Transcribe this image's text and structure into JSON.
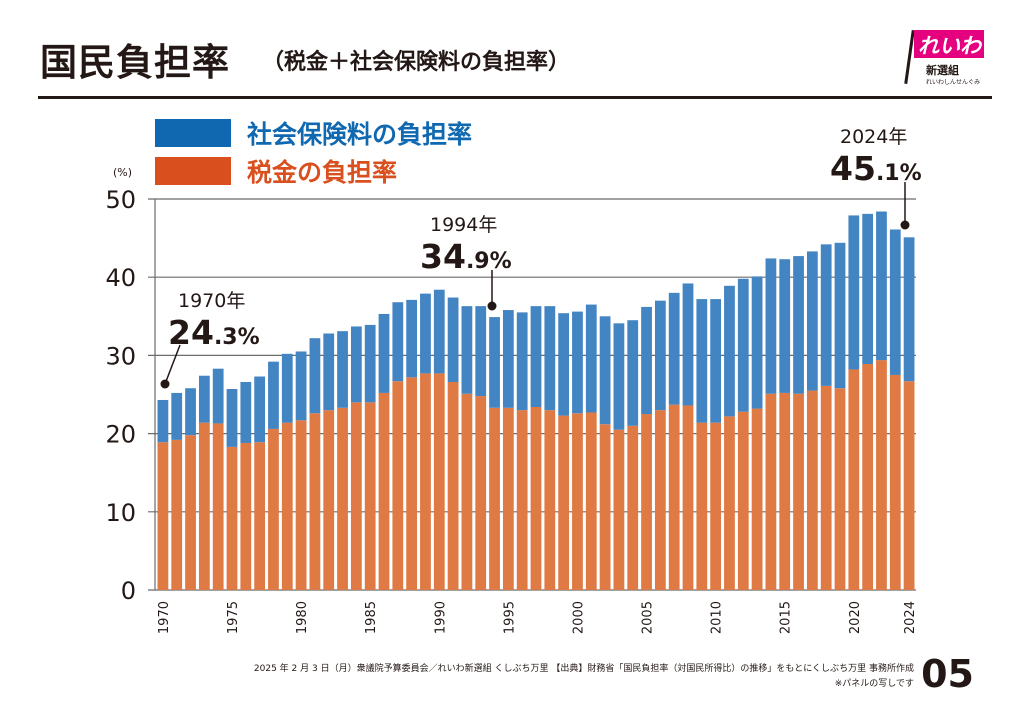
{
  "header": {
    "title": "国民負担率",
    "subtitle": "（税金＋社会保険料の負担率）"
  },
  "logo": {
    "name": "れいわ",
    "sub": "新選組",
    "sub2": "れいわしんせんぐみ"
  },
  "colors": {
    "social_insurance": "#4384c2",
    "tax": "#e07a44",
    "legend_social_insurance": "#0f68b0",
    "legend_tax": "#d9501e",
    "text": "#231815"
  },
  "footer": {
    "source": "2025 年 2 月 3 日（月）衆議院予算委員会／れいわ新選組 くしぶち万里 【出典】財務省「国民負担率（対国民所得比）の推移」をもとにくしぶち万里 事務所作成",
    "note": "※パネルの写しです",
    "page": "05"
  },
  "chart_data": {
    "type": "bar",
    "stacked": true,
    "title": "国民負担率（税金＋社会保険料の負担率）",
    "xlabel": "",
    "ylabel": "(%)",
    "ylim": [
      0,
      50
    ],
    "yticks": [
      0,
      10,
      20,
      30,
      40,
      50
    ],
    "grid": true,
    "legend_position": "top-left",
    "categories": [
      1970,
      1971,
      1972,
      1973,
      1974,
      1975,
      1976,
      1977,
      1978,
      1979,
      1980,
      1981,
      1982,
      1983,
      1984,
      1985,
      1986,
      1987,
      1988,
      1989,
      1990,
      1991,
      1992,
      1993,
      1994,
      1995,
      1996,
      1997,
      1998,
      1999,
      2000,
      2001,
      2002,
      2003,
      2004,
      2005,
      2006,
      2007,
      2008,
      2009,
      2010,
      2011,
      2012,
      2013,
      2014,
      2015,
      2016,
      2017,
      2018,
      2019,
      2020,
      2021,
      2022,
      2023,
      2024
    ],
    "xtick_labels": [
      "1970",
      "1975",
      "1980",
      "1985",
      "1990",
      "1995",
      "2000",
      "2005",
      "2010",
      "2015",
      "2020",
      "2024"
    ],
    "series": [
      {
        "name": "税金の負担率",
        "key": "tax",
        "values": [
          18.9,
          19.2,
          19.8,
          21.4,
          21.3,
          18.3,
          18.8,
          18.9,
          20.6,
          21.4,
          21.7,
          22.6,
          23.0,
          23.3,
          24.0,
          24.0,
          25.2,
          26.7,
          27.2,
          27.7,
          27.7,
          26.6,
          25.1,
          24.8,
          23.3,
          23.3,
          23.0,
          23.4,
          23.0,
          22.3,
          22.6,
          22.7,
          21.2,
          20.5,
          21.0,
          22.5,
          23.0,
          23.7,
          23.6,
          21.4,
          21.4,
          22.2,
          22.8,
          23.2,
          25.1,
          25.2,
          25.1,
          25.5,
          26.1,
          25.8,
          28.2,
          28.9,
          29.4,
          27.5,
          26.7
        ]
      },
      {
        "name": "社会保険料の負担率",
        "key": "social_insurance",
        "values": [
          5.4,
          6.0,
          6.0,
          6.0,
          7.0,
          7.4,
          7.8,
          8.4,
          8.6,
          8.8,
          8.8,
          9.6,
          9.8,
          9.8,
          9.7,
          9.9,
          10.1,
          10.1,
          9.9,
          10.2,
          10.7,
          10.8,
          11.2,
          11.5,
          11.6,
          12.5,
          12.5,
          12.9,
          13.3,
          13.1,
          13.0,
          13.8,
          13.8,
          13.6,
          13.5,
          13.7,
          14.0,
          14.3,
          15.6,
          15.8,
          15.8,
          16.7,
          17.0,
          16.9,
          17.3,
          17.1,
          17.6,
          17.8,
          18.1,
          18.6,
          19.7,
          19.2,
          19.0,
          18.6,
          18.4
        ]
      }
    ],
    "totals": [
      24.3,
      25.2,
      25.8,
      27.4,
      28.3,
      25.7,
      26.6,
      27.3,
      29.2,
      30.2,
      30.5,
      32.2,
      32.8,
      33.1,
      33.7,
      33.9,
      35.3,
      36.8,
      37.1,
      37.9,
      38.4,
      37.4,
      36.3,
      36.3,
      34.9,
      35.8,
      35.5,
      36.3,
      36.3,
      35.4,
      35.6,
      36.5,
      35.0,
      34.1,
      34.5,
      36.2,
      37.0,
      38.0,
      39.2,
      37.2,
      37.2,
      38.9,
      39.8,
      40.1,
      42.4,
      42.3,
      42.7,
      43.3,
      44.2,
      44.4,
      47.9,
      48.1,
      48.4,
      46.1,
      45.1
    ],
    "annotations": [
      {
        "year": 1970,
        "label_year": "1970年",
        "value_int": "24",
        "value_dec": ".3%"
      },
      {
        "year": 1994,
        "label_year": "1994年",
        "value_int": "34",
        "value_dec": ".9%"
      },
      {
        "year": 2024,
        "label_year": "2024年",
        "value_int": "45",
        "value_dec": ".1%"
      }
    ]
  }
}
